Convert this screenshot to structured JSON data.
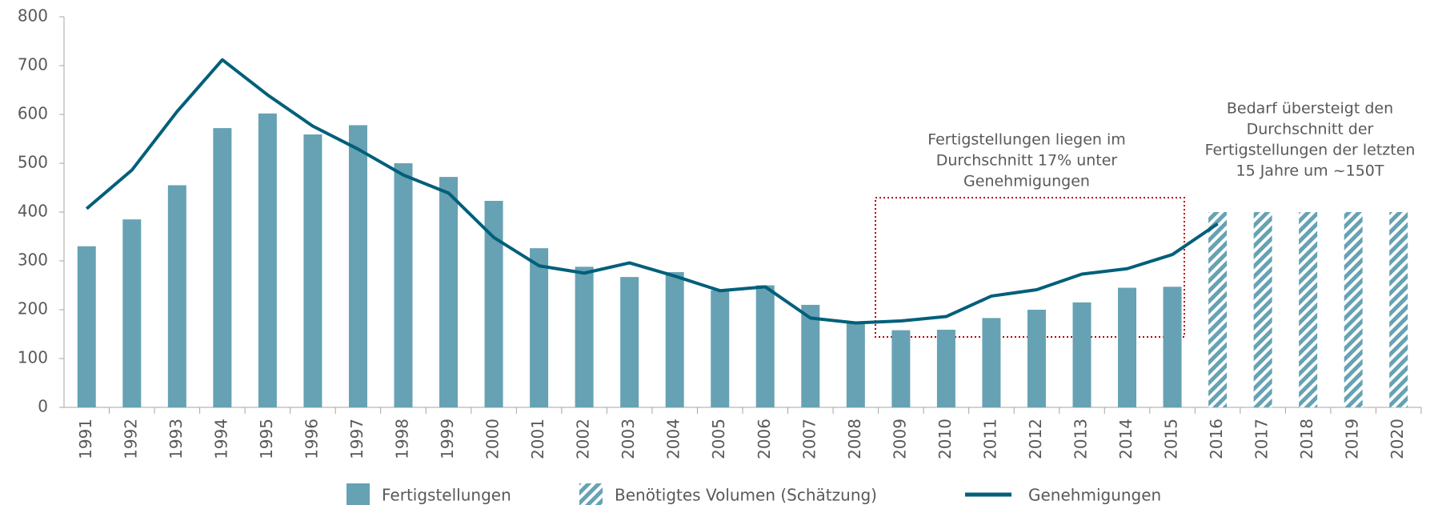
{
  "chart_data": {
    "type": "bar",
    "categories": [
      "1991",
      "1992",
      "1993",
      "1994",
      "1995",
      "1996",
      "1997",
      "1998",
      "1999",
      "2000",
      "2001",
      "2002",
      "2003",
      "2004",
      "2005",
      "2006",
      "2007",
      "2008",
      "2009",
      "2010",
      "2011",
      "2012",
      "2013",
      "2014",
      "2015",
      "2016",
      "2017",
      "2018",
      "2019",
      "2020"
    ],
    "series": [
      {
        "name": "Fertigstellungen",
        "type": "bar",
        "color": "#66a2b3",
        "values": [
          330,
          385,
          455,
          572,
          602,
          559,
          578,
          500,
          472,
          423,
          326,
          288,
          267,
          277,
          240,
          250,
          210,
          175,
          158,
          159,
          183,
          200,
          215,
          245,
          247,
          null,
          null,
          null,
          null,
          null
        ]
      },
      {
        "name": "Benötigtes Volumen (Schätzung)",
        "type": "bar",
        "hatch": true,
        "color": "#66a2b3",
        "values": [
          null,
          null,
          null,
          null,
          null,
          null,
          null,
          null,
          null,
          null,
          null,
          null,
          null,
          null,
          null,
          null,
          null,
          null,
          null,
          null,
          null,
          null,
          null,
          null,
          null,
          400,
          400,
          400,
          400,
          400
        ]
      },
      {
        "name": "Genehmigungen",
        "type": "line",
        "color": "#005f7a",
        "values": [
          407,
          486,
          606,
          712,
          640,
          576,
          529,
          476,
          439,
          348,
          290,
          275,
          296,
          269,
          239,
          247,
          183,
          173,
          177,
          186,
          228,
          241,
          273,
          284,
          313,
          376,
          null,
          null,
          null,
          null
        ]
      }
    ],
    "ylim": [
      0,
      800
    ],
    "yticks": [
      0,
      100,
      200,
      300,
      400,
      500,
      600,
      700,
      800
    ],
    "grid": false,
    "annotations": [
      [
        "Fertigstellungen liegen im",
        "Durchschnitt 17% unter",
        "Genehmigungen"
      ],
      [
        "Bedarf übersteigt den",
        "Durchschnitt der",
        "Fertigstellungen der letzten",
        "15 Jahre um ~150T"
      ]
    ]
  }
}
